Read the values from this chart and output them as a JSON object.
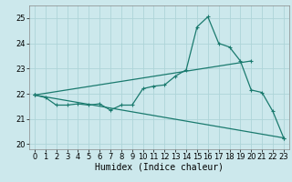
{
  "title": "",
  "xlabel": "Humidex (Indice chaleur)",
  "ylabel": "",
  "bg_color": "#cce8ec",
  "grid_color": "#aed4d8",
  "line_color": "#1a7a6e",
  "xlim": [
    -0.5,
    23.5
  ],
  "ylim": [
    19.8,
    25.5
  ],
  "yticks": [
    20,
    21,
    22,
    23,
    24,
    25
  ],
  "xticks": [
    0,
    1,
    2,
    3,
    4,
    5,
    6,
    7,
    8,
    9,
    10,
    11,
    12,
    13,
    14,
    15,
    16,
    17,
    18,
    19,
    20,
    21,
    22,
    23
  ],
  "series1_x": [
    0,
    1,
    2,
    3,
    4,
    5,
    6,
    7,
    8,
    9,
    10,
    11,
    12,
    13,
    14,
    15,
    16,
    17,
    18,
    19,
    20,
    21,
    22,
    23
  ],
  "series1_y": [
    21.95,
    21.85,
    21.55,
    21.55,
    21.6,
    21.55,
    21.6,
    21.35,
    21.55,
    21.55,
    22.2,
    22.3,
    22.35,
    22.7,
    22.95,
    24.65,
    25.05,
    24.0,
    23.85,
    23.3,
    22.15,
    22.05,
    21.3,
    20.25
  ],
  "series2_x": [
    0,
    23
  ],
  "series2_y": [
    21.95,
    20.25
  ],
  "series3_x": [
    0,
    20
  ],
  "series3_y": [
    21.95,
    23.3
  ],
  "font_size": 7,
  "tick_fontsize": 6,
  "lw": 0.9,
  "ms": 2.5
}
